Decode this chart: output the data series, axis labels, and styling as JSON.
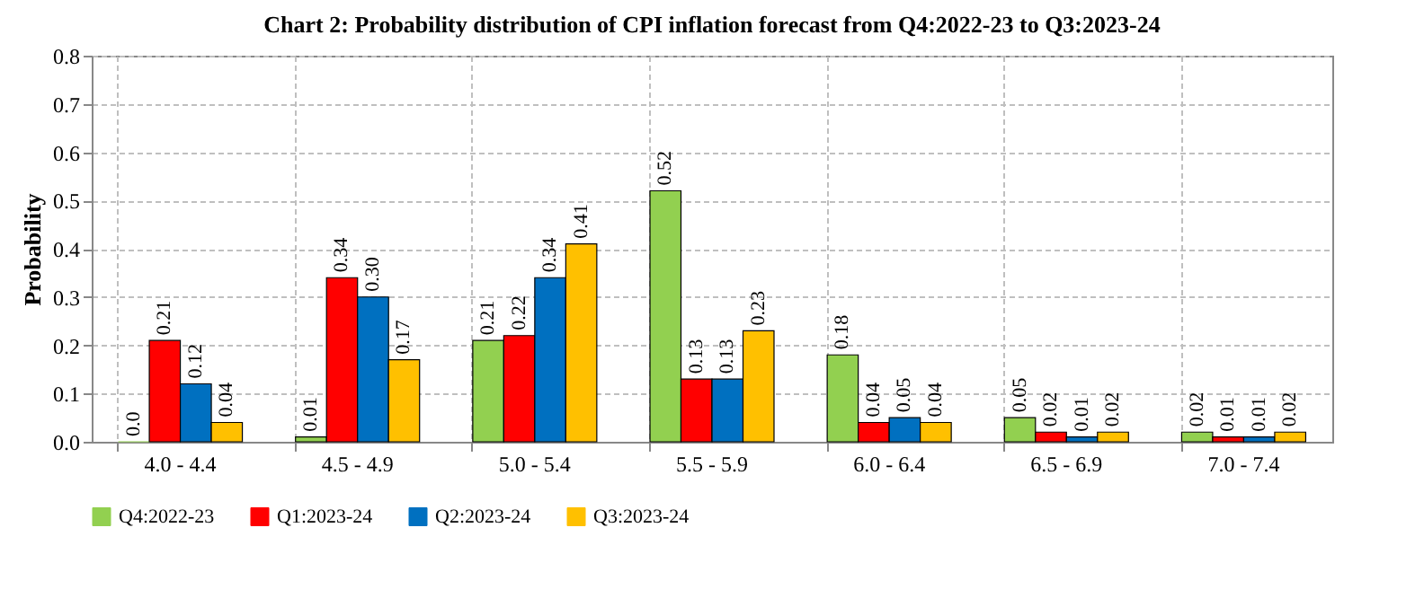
{
  "chart_data": {
    "type": "bar",
    "title": "Chart 2: Probability distribution of  CPI inflation forecast from Q4:2022-23 to Q3:2023-24",
    "ylabel": "Probability",
    "categories": [
      "4.0 - 4.4",
      "4.5 - 4.9",
      "5.0 - 5.4",
      "5.5 - 5.9",
      "6.0 - 6.4",
      "6.5 - 6.9",
      "7.0 - 7.4"
    ],
    "series": [
      {
        "name": "Q4:2022-23",
        "color": "#92d050",
        "values": [
          0.0,
          0.01,
          0.21,
          0.52,
          0.18,
          0.05,
          0.02
        ],
        "value_labels": [
          "0.0",
          "0.01",
          "0.21",
          "0.52",
          "0.18",
          "0.05",
          "0.02"
        ]
      },
      {
        "name": "Q1:2023-24",
        "color": "#ff0000",
        "values": [
          0.21,
          0.34,
          0.22,
          0.13,
          0.04,
          0.02,
          0.01
        ],
        "value_labels": [
          "0.21",
          "0.34",
          "0.22",
          "0.13",
          "0.04",
          "0.02",
          "0.01"
        ]
      },
      {
        "name": "Q2:2023-24",
        "color": "#0070c0",
        "values": [
          0.12,
          0.3,
          0.34,
          0.13,
          0.05,
          0.01,
          0.01
        ],
        "value_labels": [
          "0.12",
          "0.30",
          "0.34",
          "0.13",
          "0.05",
          "0.01",
          "0.01"
        ]
      },
      {
        "name": "Q3:2023-24",
        "color": "#ffc000",
        "values": [
          0.04,
          0.17,
          0.41,
          0.23,
          0.04,
          0.02,
          0.02
        ],
        "value_labels": [
          "0.04",
          "0.17",
          "0.41",
          "0.23",
          "0.04",
          "0.02",
          "0.02"
        ]
      }
    ],
    "ylim": [
      0,
      0.8
    ],
    "yticks": [
      {
        "value": 0,
        "label": "0.0"
      },
      {
        "value": 0.1,
        "label": "0.1"
      },
      {
        "value": 0.2,
        "label": "0.2"
      },
      {
        "value": 0.3,
        "label": "0.3"
      },
      {
        "value": 0.4,
        "label": "0.4"
      },
      {
        "value": 0.5,
        "label": "0.5"
      },
      {
        "value": 0.6,
        "label": "0.6"
      },
      {
        "value": 0.7,
        "label": "0.7"
      },
      {
        "value": 0.8,
        "label": "0.8"
      }
    ],
    "grid": true,
    "legend": "bottom"
  }
}
